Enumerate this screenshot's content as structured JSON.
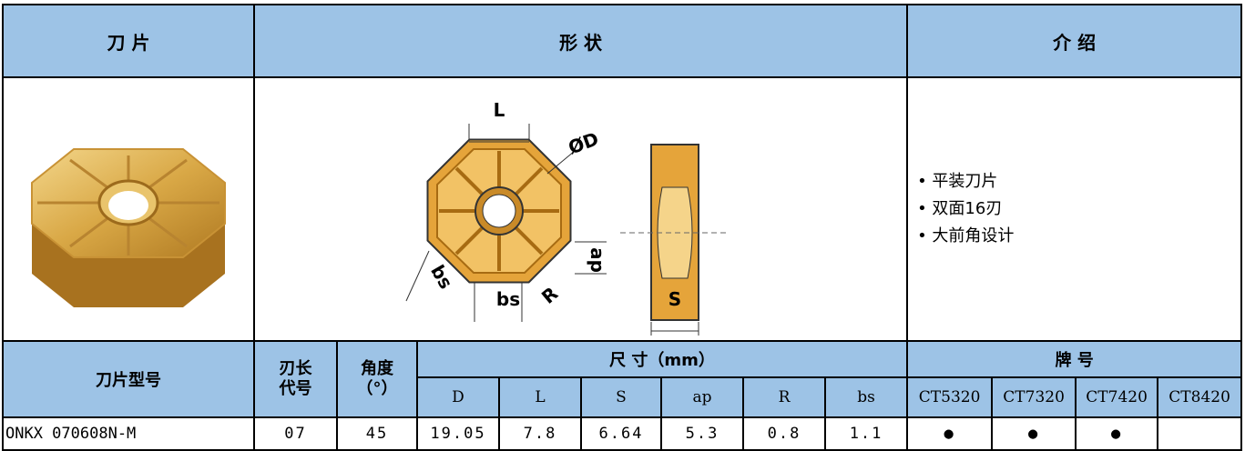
{
  "header": {
    "blade": "刀 片",
    "shape": "形 状",
    "intro": "介 绍"
  },
  "shape_diagram": {
    "labels": {
      "L": "L",
      "D": "ØD",
      "ap": "ap",
      "bs_side": "bs",
      "bs_bottom": "bs",
      "R": "R",
      "S": "S"
    }
  },
  "intro": [
    "• 平装刀片",
    "• 双面16刃",
    "• 大前角设计"
  ],
  "table": {
    "model_header": "刀片型号",
    "edge_header": "刃长\n代号",
    "angle_header": "角度\n（°）",
    "size_header": "尺 寸（mm）",
    "grade_header": "牌 号",
    "size_columns": [
      "D",
      "L",
      "S",
      "ap",
      "R",
      "bs"
    ],
    "grade_columns": [
      "CT5320",
      "CT7320",
      "CT7420",
      "CT8420"
    ],
    "rows": [
      {
        "model": "ONKX 070608N-M",
        "edge": "07",
        "angle": "45",
        "sizes": [
          "19.05",
          "7.8",
          "6.64",
          "5.3",
          "0.8",
          "1.1"
        ],
        "grades": [
          "●",
          "●",
          "●",
          null
        ]
      }
    ]
  }
}
